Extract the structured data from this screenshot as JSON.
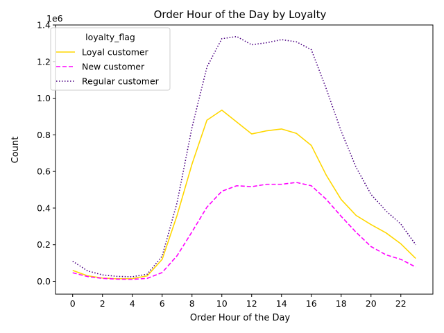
{
  "chart_data": {
    "type": "line",
    "title": "Order Hour of the Day by Loyalty",
    "xlabel": "Order Hour of the Day",
    "ylabel": "Count",
    "y_offset_text": "1e6",
    "xlim": [
      -1.15,
      24.15
    ],
    "ylim": [
      -70000,
      1400000
    ],
    "xticks": [
      0,
      2,
      4,
      6,
      8,
      10,
      12,
      14,
      16,
      18,
      20,
      22
    ],
    "xtick_labels": [
      "0",
      "2",
      "4",
      "6",
      "8",
      "10",
      "12",
      "14",
      "16",
      "18",
      "20",
      "22"
    ],
    "yticks": [
      0,
      200000,
      400000,
      600000,
      800000,
      1000000,
      1200000,
      1400000
    ],
    "ytick_labels": [
      "0.0",
      "0.2",
      "0.4",
      "0.6",
      "0.8",
      "1.0",
      "1.2",
      "1.4"
    ],
    "grid": false,
    "legend": {
      "title": "loyalty_flag",
      "placement": "upper-left"
    },
    "x": [
      0,
      1,
      2,
      3,
      4,
      5,
      6,
      7,
      8,
      9,
      10,
      11,
      12,
      13,
      14,
      15,
      16,
      17,
      18,
      19,
      20,
      21,
      22,
      23
    ],
    "series": [
      {
        "name": "Loyal customer",
        "color": "#ffd700",
        "dash": "solid",
        "values": [
          60000,
          30000,
          18000,
          14000,
          15000,
          30000,
          120000,
          360000,
          640000,
          880000,
          935000,
          870000,
          805000,
          822000,
          832000,
          808000,
          742000,
          580000,
          447000,
          360000,
          310000,
          265000,
          205000,
          125000
        ]
      },
      {
        "name": "New customer",
        "color": "#ff00ff",
        "dash": "dashed",
        "values": [
          47000,
          26000,
          16000,
          12000,
          11000,
          16000,
          48000,
          140000,
          270000,
          405000,
          492000,
          522000,
          517000,
          530000,
          530000,
          540000,
          522000,
          448000,
          355000,
          268000,
          190000,
          145000,
          120000,
          78000
        ]
      },
      {
        "name": "Regular customer",
        "color": "#4b0082",
        "dash": "dotted",
        "values": [
          110000,
          57000,
          35000,
          27000,
          25000,
          39000,
          138000,
          430000,
          840000,
          1170000,
          1325000,
          1337000,
          1292000,
          1303000,
          1320000,
          1308000,
          1265000,
          1052000,
          820000,
          623000,
          475000,
          385000,
          313000,
          200000
        ]
      }
    ]
  }
}
